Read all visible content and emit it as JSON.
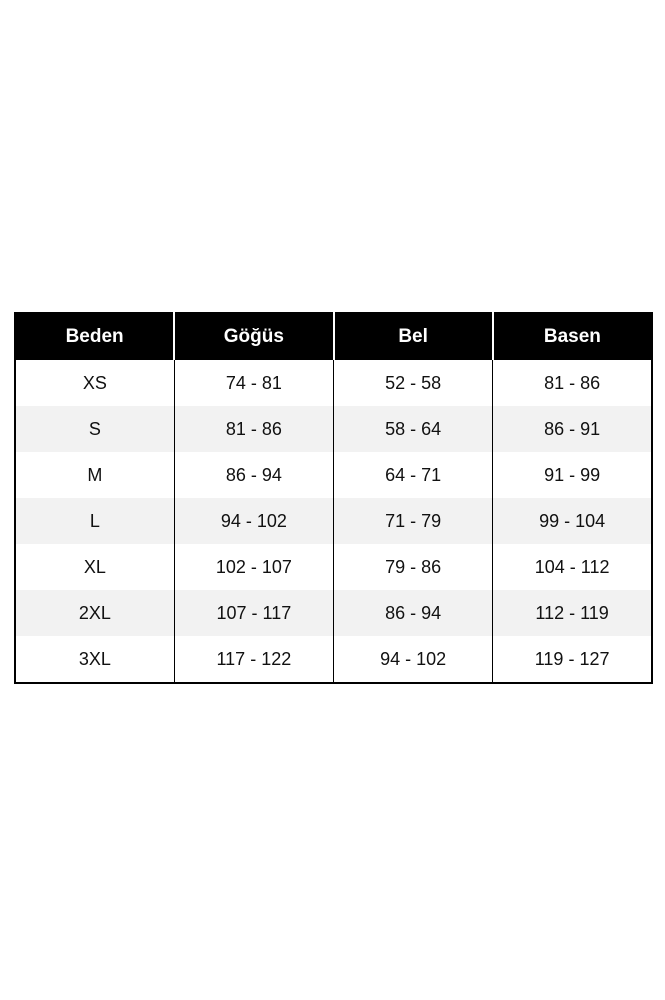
{
  "chart_data": {
    "type": "table",
    "columns": [
      "Beden",
      "Göğüs",
      "Bel",
      "Basen"
    ],
    "rows": [
      [
        "XS",
        "74 - 81",
        "52 - 58",
        "81 - 86"
      ],
      [
        "S",
        "81 - 86",
        "58 - 64",
        "86 - 91"
      ],
      [
        "M",
        "86 - 94",
        "64 - 71",
        "91 - 99"
      ],
      [
        "L",
        "94 - 102",
        "71 - 79",
        "99 - 104"
      ],
      [
        "XL",
        "102 - 107",
        "79 - 86",
        "104 - 112"
      ],
      [
        "2XL",
        "107 - 117",
        "86 - 94",
        "112 - 119"
      ],
      [
        "3XL",
        "117 - 122",
        "94 - 102",
        "119 - 127"
      ]
    ]
  },
  "colors": {
    "header_bg": "#000000",
    "header_text": "#ffffff",
    "row_alt_bg": "#f2f2f2",
    "body_text": "#111111",
    "border": "#000000",
    "page_bg": "#ffffff"
  }
}
